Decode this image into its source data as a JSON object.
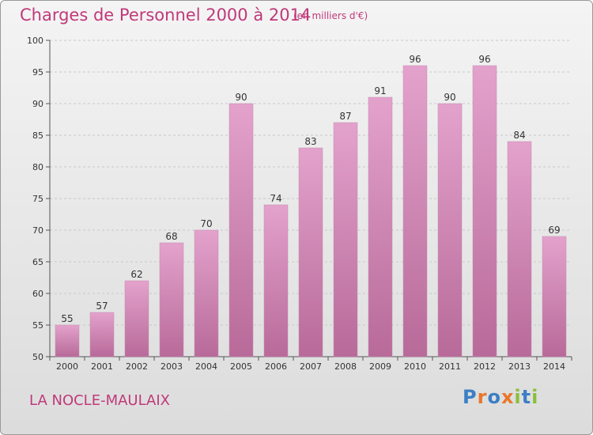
{
  "header": {
    "title": "Charges de Personnel 2000 à 2014",
    "subtitle": "(en milliers d'€)"
  },
  "footer": {
    "location": "LA NOCLE-MAULAIX",
    "brand": "Proxiti",
    "brand_colors": [
      "#3b7fc4",
      "#e8762b",
      "#3b7fc4",
      "#e8762b",
      "#8bbf3a",
      "#3b7fc4",
      "#8bbf3a"
    ]
  },
  "chart_data": {
    "type": "bar",
    "title": "Charges de Personnel 2000 à 2014",
    "subtitle": "(en milliers d'€)",
    "categories": [
      "2000",
      "2001",
      "2002",
      "2003",
      "2004",
      "2005",
      "2006",
      "2007",
      "2008",
      "2009",
      "2010",
      "2011",
      "2012",
      "2013",
      "2014"
    ],
    "values": [
      55,
      57,
      62,
      68,
      70,
      90,
      74,
      83,
      87,
      91,
      96,
      90,
      96,
      84,
      69
    ],
    "ylim": [
      50,
      100
    ],
    "yticks": [
      50,
      55,
      60,
      65,
      70,
      75,
      80,
      85,
      90,
      95,
      100
    ],
    "grid": true,
    "bar_color": "#e3a2cc",
    "bar_color_dark": "#b86a99"
  }
}
